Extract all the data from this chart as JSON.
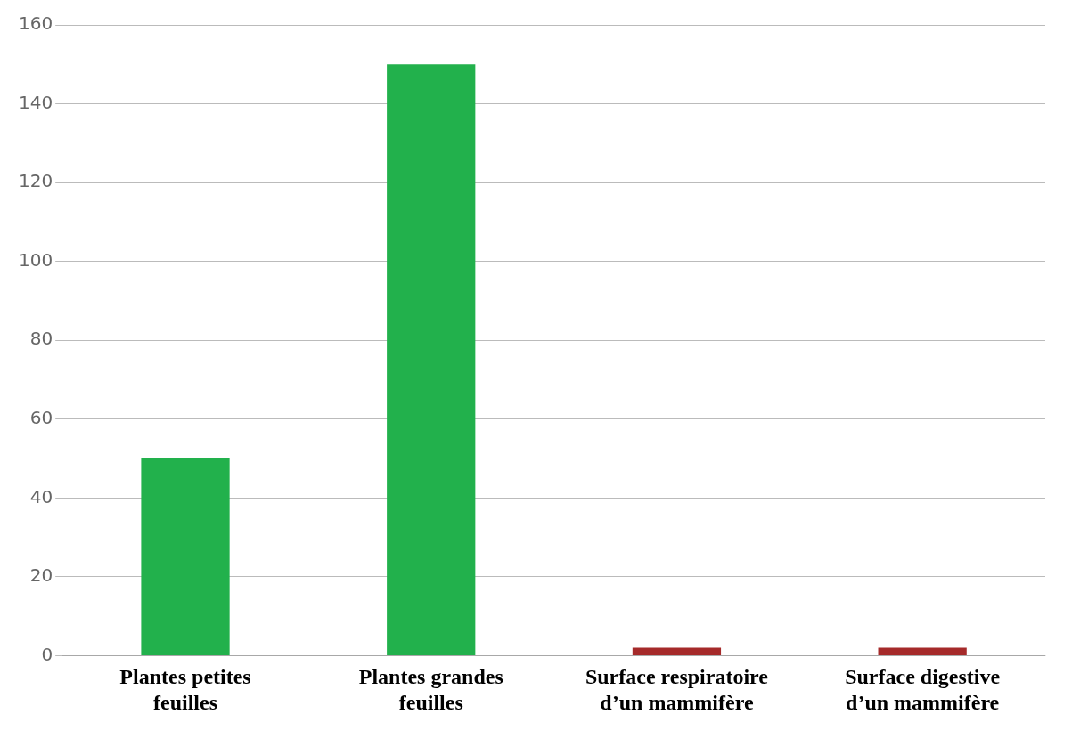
{
  "chart_data": {
    "type": "bar",
    "categories": [
      "Plantes petites feuilles",
      "Plantes grandes feuilles",
      "Surface respiratoire d’un mammifère",
      "Surface digestive d’un mammifère"
    ],
    "values": [
      50,
      150,
      2,
      2
    ],
    "colors": [
      "#22b14c",
      "#22b14c",
      "#a52a2a",
      "#a52a2a"
    ],
    "ylim": [
      0,
      160
    ],
    "yticks": [
      0,
      20,
      40,
      60,
      80,
      100,
      120,
      140,
      160
    ],
    "grid": "y",
    "legend": false
  }
}
